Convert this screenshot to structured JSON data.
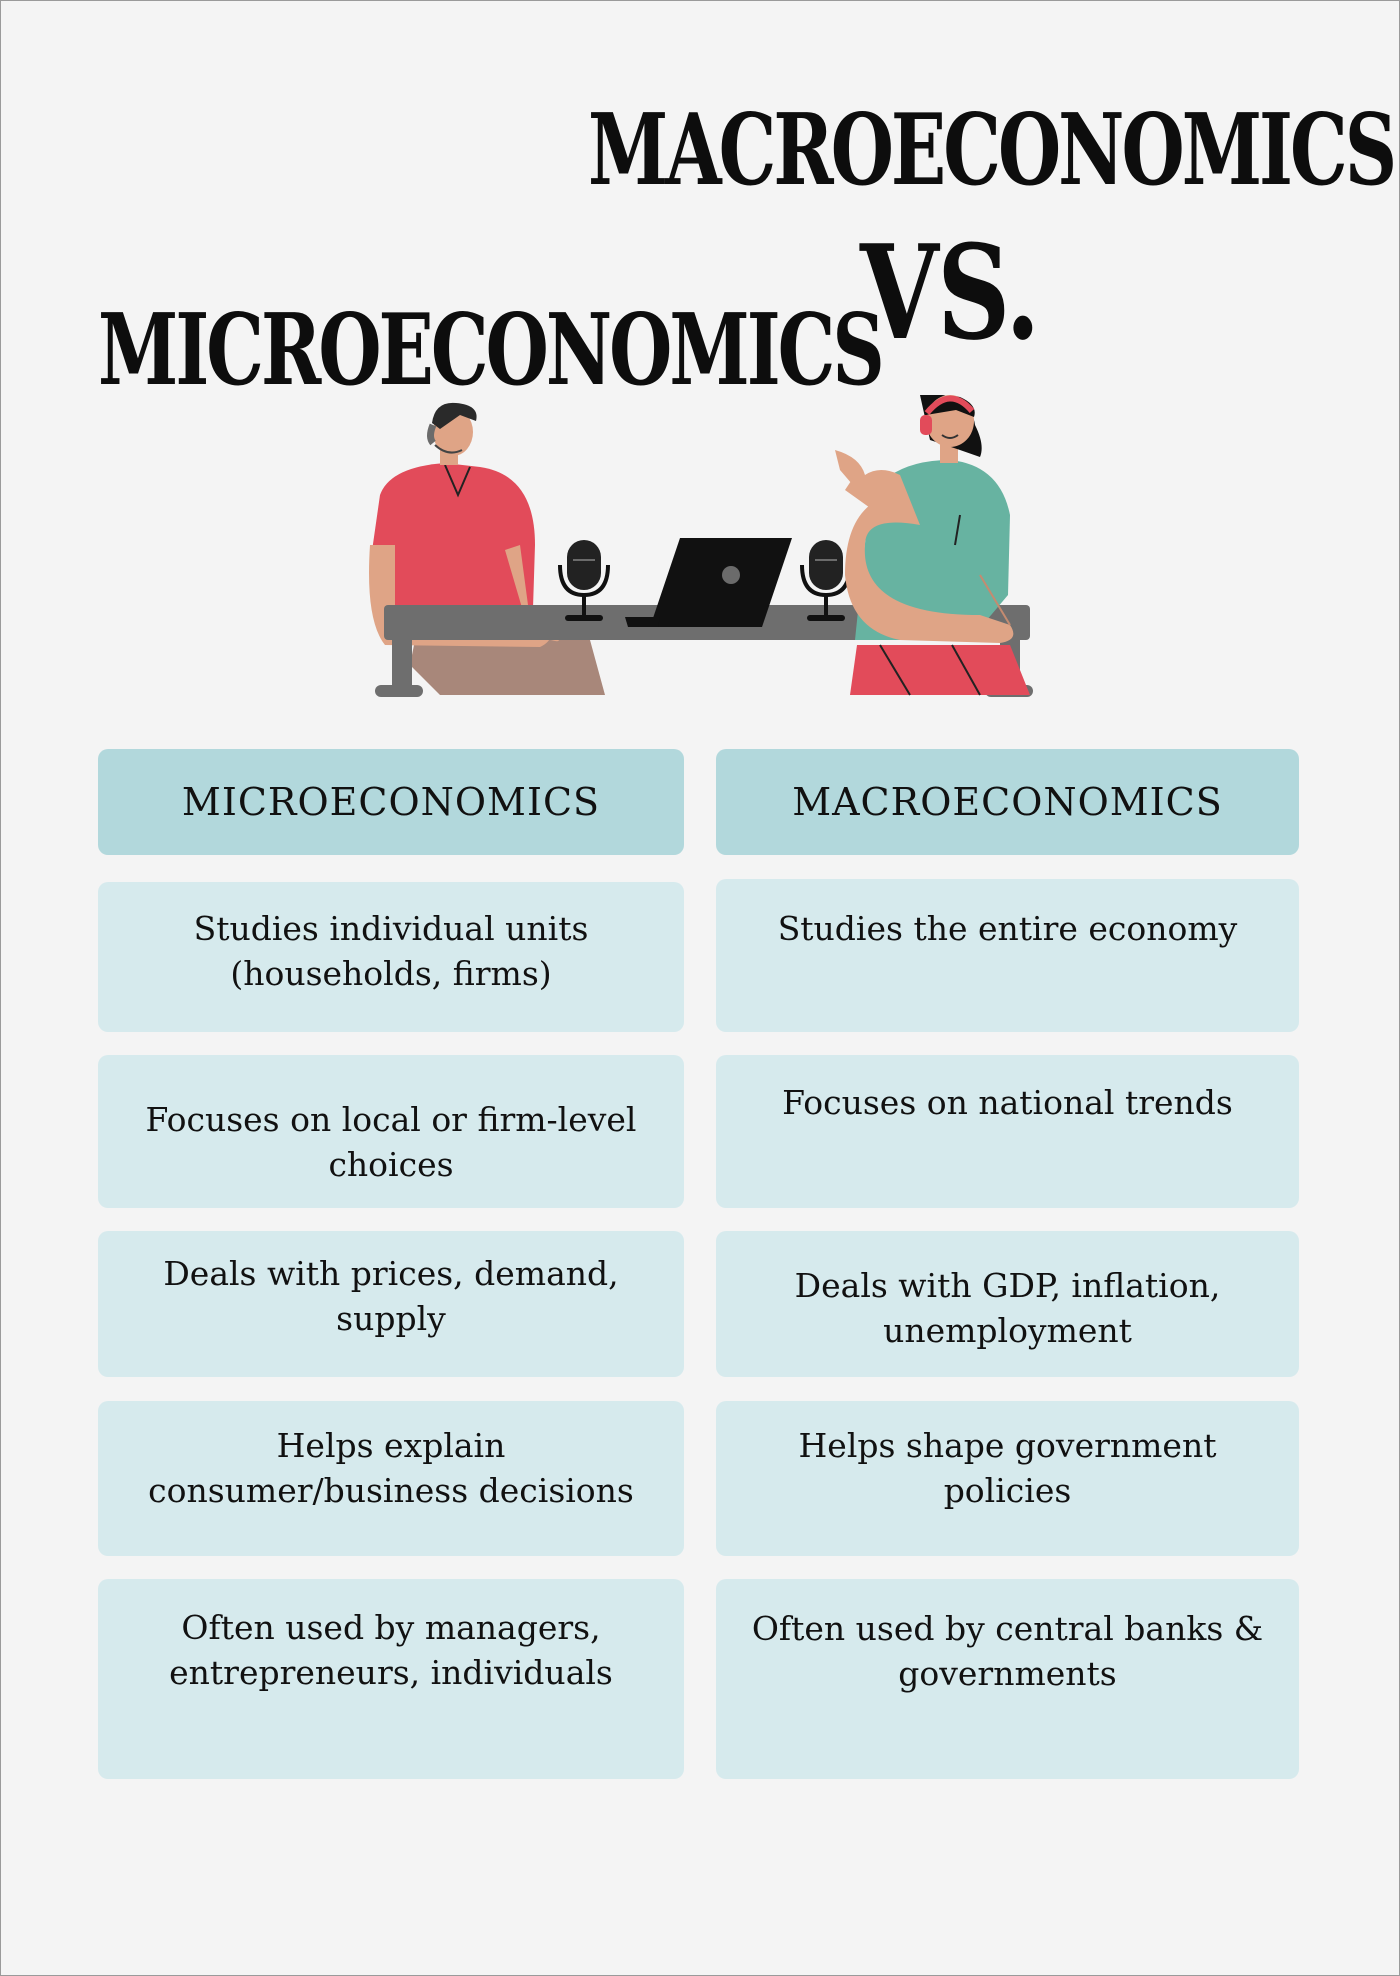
{
  "title": {
    "macro": "MACROECONOMICS",
    "vs": "VS.",
    "micro": "MICROECONOMICS"
  },
  "colors": {
    "background": "#f4f4f4",
    "header_cell": "#b2d8dc",
    "body_cell": "#d6eaed",
    "shirt_red": "#e24b5a",
    "shirt_teal": "#67b3a1",
    "skin": "#dfa486",
    "desk": "#6e6e6e"
  },
  "illustration": {
    "icons": [
      "man-with-headset-icon",
      "woman-with-headphones-icon",
      "microphone-icon",
      "laptop-icon",
      "desk-icon"
    ]
  },
  "table": {
    "headers": [
      "MICROECONOMICS",
      "MACROECONOMICS"
    ],
    "rows": [
      [
        "Studies individual units (households, firms)",
        "Studies the entire economy"
      ],
      [
        "Focuses on local or firm-level choices",
        "Focuses on national trends"
      ],
      [
        "Deals with prices, demand, supply",
        "Deals with GDP, inflation, unemployment"
      ],
      [
        "Helps explain consumer/business decisions",
        "Helps shape government policies"
      ],
      [
        "Often used by managers, entrepreneurs, individuals",
        "Often used by central banks & governments"
      ]
    ]
  }
}
